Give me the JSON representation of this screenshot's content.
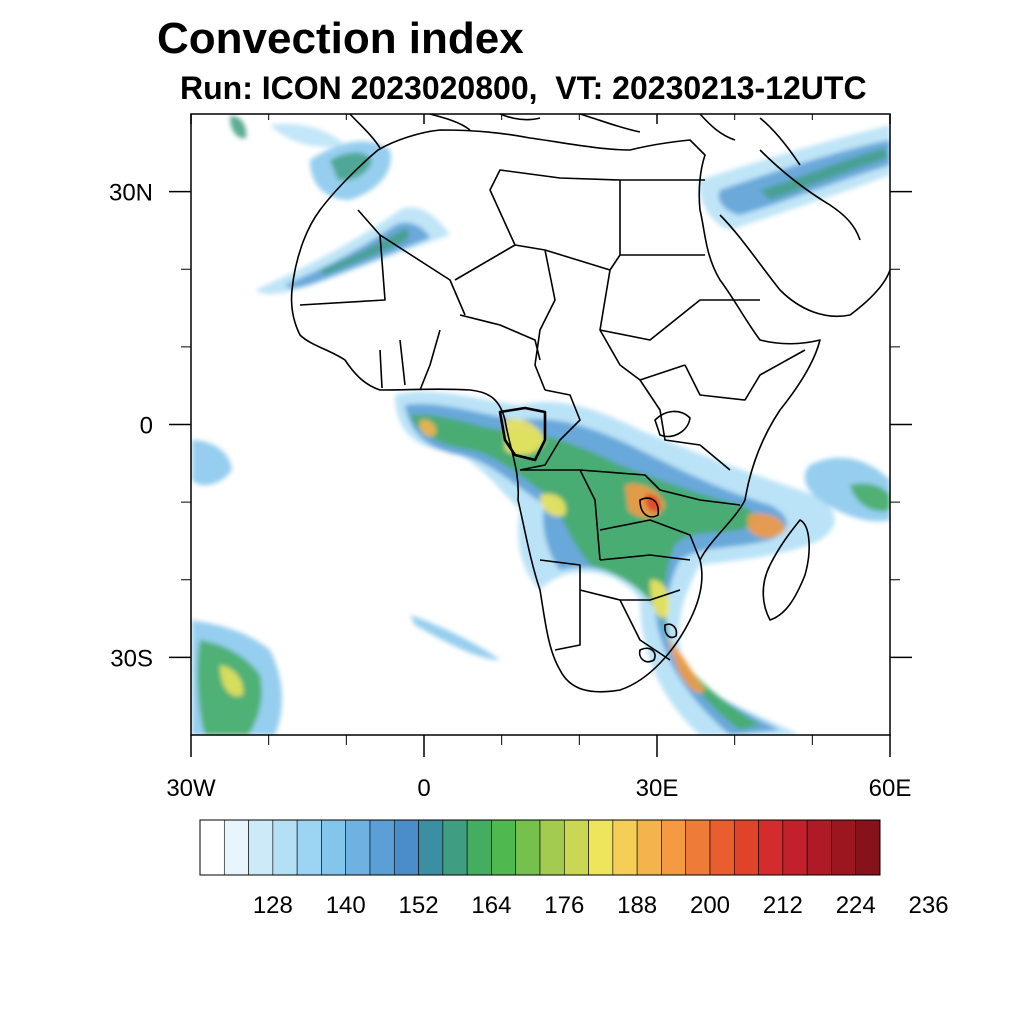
{
  "title": "Convection index",
  "subtitle": "Run: ICON 2023020800,  VT: 20230213-12UTC",
  "map": {
    "lon_range": [
      -30,
      60
    ],
    "lat_range": [
      -40,
      40
    ],
    "lon_ticks": [
      {
        "value": -30,
        "label": "30W"
      },
      {
        "value": 0,
        "label": "0"
      },
      {
        "value": 30,
        "label": "30E"
      },
      {
        "value": 60,
        "label": "60E"
      }
    ],
    "lat_ticks": [
      {
        "value": 30,
        "label": "30N"
      },
      {
        "value": 0,
        "label": "0"
      },
      {
        "value": -30,
        "label": "30S"
      }
    ],
    "minor_lon_ticks": [
      -20,
      -10,
      10,
      20,
      40,
      50
    ],
    "minor_lat_ticks": [
      20,
      10,
      -10,
      -20
    ],
    "colors": {
      "coast": "#000000",
      "frame": "#000000"
    }
  },
  "colorbar": {
    "labels": [
      "128",
      "140",
      "152",
      "164",
      "176",
      "188",
      "200",
      "212",
      "224",
      "236"
    ],
    "colors": [
      "#ffffff",
      "#e8f5fc",
      "#cdeaf8",
      "#b4e0f6",
      "#9bd5f3",
      "#84c5ec",
      "#6fb2e2",
      "#5c9fd6",
      "#4a8dc8",
      "#3c8fa3",
      "#3f9e82",
      "#44ad62",
      "#4fb84e",
      "#76c04e",
      "#a2cb50",
      "#c9d755",
      "#eee55c",
      "#f4ce56",
      "#f4b44d",
      "#f39a43",
      "#ee7b38",
      "#e85e2f",
      "#e04329",
      "#d42c2c",
      "#c2202b",
      "#b01a26",
      "#9c1620",
      "#86121b"
    ]
  }
}
